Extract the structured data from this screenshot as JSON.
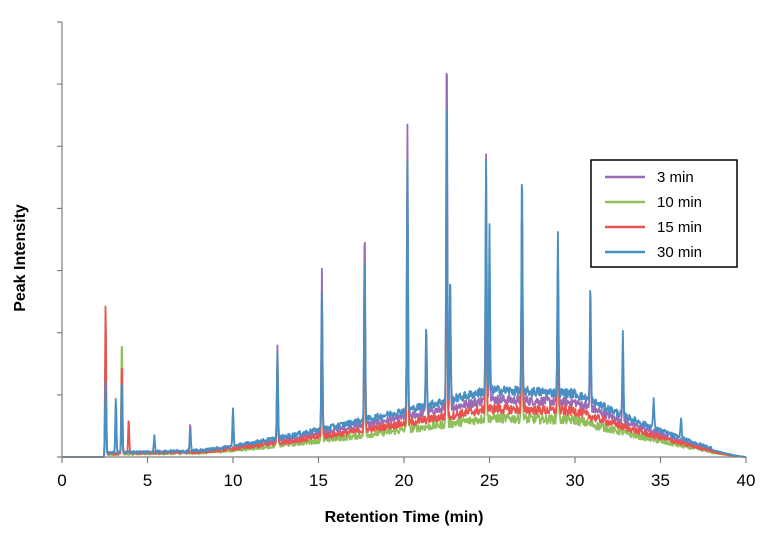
{
  "chart_data": {
    "type": "line",
    "title": "",
    "xlabel": "Retention Time (min)",
    "ylabel": "Peak Intensity",
    "xlim": [
      0,
      40
    ],
    "ylim": [
      0,
      7
    ],
    "x_ticks": [
      0,
      5,
      10,
      15,
      20,
      25,
      30,
      35,
      40
    ],
    "x_tick_labels": [
      "0",
      "5",
      "10",
      "15",
      "20",
      "25",
      "30",
      "35",
      "40"
    ],
    "y_tick_count": 7,
    "y_tick_labels_shown": false,
    "grid": false,
    "legend_position": "right",
    "series": [
      {
        "name": "3 min",
        "color": "#9b6bb5",
        "baseline_level": 0.85,
        "peaks": [
          {
            "x": 2.55,
            "h": 0.95
          },
          {
            "x": 3.15,
            "h": 0.75
          },
          {
            "x": 3.5,
            "h": 0.55
          },
          {
            "x": 7.5,
            "h": 0.45
          },
          {
            "x": 10.0,
            "h": 0.58
          },
          {
            "x": 12.6,
            "h": 1.55
          },
          {
            "x": 15.2,
            "h": 2.6
          },
          {
            "x": 17.7,
            "h": 3.2
          },
          {
            "x": 20.2,
            "h": 4.65
          },
          {
            "x": 21.3,
            "h": 1.4
          },
          {
            "x": 22.5,
            "h": 5.9
          },
          {
            "x": 22.7,
            "h": 1.8
          },
          {
            "x": 24.8,
            "h": 3.95
          },
          {
            "x": 25.0,
            "h": 1.5
          },
          {
            "x": 26.9,
            "h": 3.2
          },
          {
            "x": 29.0,
            "h": 2.25
          },
          {
            "x": 30.9,
            "h": 1.4
          },
          {
            "x": 32.8,
            "h": 1.0
          }
        ]
      },
      {
        "name": "10 min",
        "color": "#8fc05c",
        "baseline_level": 0.55,
        "peaks": [
          {
            "x": 2.55,
            "h": 1.7
          },
          {
            "x": 3.5,
            "h": 1.9
          },
          {
            "x": 12.6,
            "h": 1.3
          },
          {
            "x": 15.2,
            "h": 2.0
          },
          {
            "x": 17.7,
            "h": 2.5
          },
          {
            "x": 20.2,
            "h": 3.6
          },
          {
            "x": 22.5,
            "h": 4.3
          },
          {
            "x": 24.8,
            "h": 3.1
          },
          {
            "x": 26.9,
            "h": 3.1
          },
          {
            "x": 29.0,
            "h": 2.3
          }
        ]
      },
      {
        "name": "15 min",
        "color": "#e8534f",
        "baseline_level": 0.7,
        "peaks": [
          {
            "x": 2.55,
            "h": 2.45
          },
          {
            "x": 3.5,
            "h": 1.5
          },
          {
            "x": 3.9,
            "h": 0.55
          },
          {
            "x": 12.6,
            "h": 1.3
          },
          {
            "x": 15.2,
            "h": 2.0
          },
          {
            "x": 17.7,
            "h": 2.6
          },
          {
            "x": 20.2,
            "h": 3.7
          },
          {
            "x": 22.5,
            "h": 4.4
          },
          {
            "x": 24.8,
            "h": 3.2
          },
          {
            "x": 26.9,
            "h": 3.2
          },
          {
            "x": 29.0,
            "h": 2.3
          }
        ]
      },
      {
        "name": "30 min",
        "color": "#4a8fc2",
        "baseline_level": 1.0,
        "peaks": [
          {
            "x": 2.55,
            "h": 1.2
          },
          {
            "x": 3.15,
            "h": 0.9
          },
          {
            "x": 3.5,
            "h": 1.2
          },
          {
            "x": 5.4,
            "h": 0.25
          },
          {
            "x": 7.5,
            "h": 0.35
          },
          {
            "x": 10.0,
            "h": 0.6
          },
          {
            "x": 12.6,
            "h": 1.35
          },
          {
            "x": 15.2,
            "h": 2.2
          },
          {
            "x": 17.7,
            "h": 2.75
          },
          {
            "x": 20.2,
            "h": 4.05
          },
          {
            "x": 21.3,
            "h": 1.3
          },
          {
            "x": 22.5,
            "h": 5.15
          },
          {
            "x": 22.7,
            "h": 2.0
          },
          {
            "x": 24.8,
            "h": 3.65
          },
          {
            "x": 25.0,
            "h": 2.6
          },
          {
            "x": 26.9,
            "h": 3.6
          },
          {
            "x": 29.0,
            "h": 2.6
          },
          {
            "x": 30.9,
            "h": 1.9
          },
          {
            "x": 32.8,
            "h": 1.3
          },
          {
            "x": 34.6,
            "h": 0.5
          },
          {
            "x": 36.2,
            "h": 0.35
          }
        ]
      }
    ]
  }
}
